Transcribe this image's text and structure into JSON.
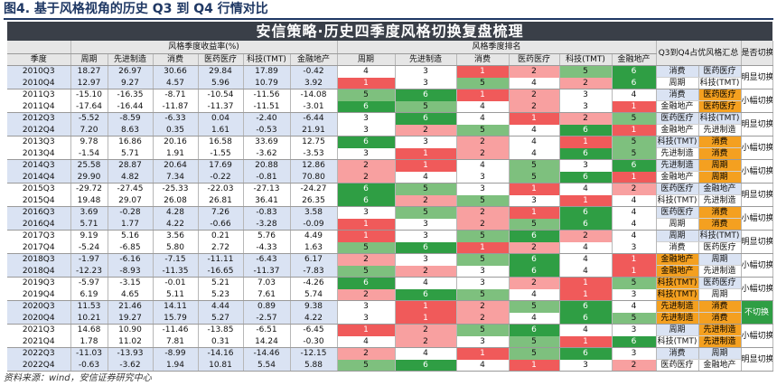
{
  "figure_title": "图4. 基于风格视角的历史 Q3 到 Q4 行情对比",
  "banner_title": "安信策略·历史四季度风格切换复盘梳理",
  "header": {
    "quarter_label": "季度",
    "returns_group": "风格季度收益率(%)",
    "rank_group": "风格季度排名",
    "summary_group": "Q3到Q4占优风格汇总",
    "switch_group": "是否切换",
    "styles": [
      "周期",
      "先进制造",
      "消费",
      "医药医疗",
      "科技(TMT)",
      "金融地产"
    ]
  },
  "rows": [
    {
      "q": "2010Q3",
      "ret": [
        "18.27",
        "26.97",
        "30.66",
        "29.84",
        "17.89",
        "-0.42"
      ],
      "rank": [
        "4",
        "3",
        "1",
        "2",
        "5",
        "6"
      ]
    },
    {
      "q": "2010Q4",
      "ret": [
        "12.97",
        "9.27",
        "4.57",
        "5.96",
        "10.79",
        "3.92"
      ],
      "rank": [
        "1",
        "3",
        "5",
        "4",
        "2",
        "6"
      ]
    },
    {
      "q": "2011Q3",
      "ret": [
        "-15.10",
        "-16.35",
        "-8.71",
        "-10.54",
        "-11.56",
        "-14.08"
      ],
      "rank": [
        "5",
        "6",
        "1",
        "2",
        "3",
        "4"
      ]
    },
    {
      "q": "2011Q4",
      "ret": [
        "-17.64",
        "-16.44",
        "-11.87",
        "-11.37",
        "-11.51",
        "-3.01"
      ],
      "rank": [
        "6",
        "5",
        "4",
        "2",
        "3",
        "1"
      ]
    },
    {
      "q": "2012Q3",
      "ret": [
        "-5.52",
        "-8.59",
        "-6.33",
        "0.04",
        "-2.40",
        "-6.44"
      ],
      "rank": [
        "3",
        "6",
        "4",
        "1",
        "2",
        "5"
      ]
    },
    {
      "q": "2012Q4",
      "ret": [
        "7.20",
        "8.63",
        "0.35",
        "1.61",
        "-0.53",
        "21.91"
      ],
      "rank": [
        "3",
        "2",
        "5",
        "4",
        "6",
        "1"
      ]
    },
    {
      "q": "2013Q3",
      "ret": [
        "9.78",
        "16.86",
        "20.16",
        "16.58",
        "33.69",
        "12.75"
      ],
      "rank": [
        "6",
        "3",
        "2",
        "4",
        "1",
        "5"
      ]
    },
    {
      "q": "2013Q4",
      "ret": [
        "-1.54",
        "5.71",
        "1.91",
        "-1.55",
        "-3.62",
        "-3.53"
      ],
      "rank": [
        "3",
        "1",
        "2",
        "4",
        "6",
        "5"
      ]
    },
    {
      "q": "2014Q3",
      "ret": [
        "25.58",
        "28.87",
        "20.64",
        "17.69",
        "20.88",
        "12.86"
      ],
      "rank": [
        "2",
        "1",
        "4",
        "5",
        "3",
        "6"
      ]
    },
    {
      "q": "2014Q4",
      "ret": [
        "29.90",
        "4.82",
        "7.34",
        "-0.22",
        "-0.81",
        "70.80"
      ],
      "rank": [
        "2",
        "4",
        "3",
        "5",
        "6",
        "1"
      ]
    },
    {
      "q": "2015Q3",
      "ret": [
        "-29.72",
        "-27.45",
        "-25.33",
        "-22.03",
        "-27.13",
        "-24.27"
      ],
      "rank": [
        "6",
        "5",
        "3",
        "1",
        "4",
        "2"
      ]
    },
    {
      "q": "2015Q4",
      "ret": [
        "19.48",
        "29.07",
        "26.08",
        "26.81",
        "36.41",
        "26.35"
      ],
      "rank": [
        "6",
        "2",
        "5",
        "3",
        "1",
        "4"
      ]
    },
    {
      "q": "2016Q3",
      "ret": [
        "3.69",
        "-0.28",
        "4.28",
        "7.26",
        "-0.83",
        "3.58"
      ],
      "rank": [
        "3",
        "5",
        "2",
        "1",
        "6",
        "4"
      ]
    },
    {
      "q": "2016Q4",
      "ret": [
        "5.71",
        "1.77",
        "4.22",
        "-0.66",
        "-3.28",
        "-0.09"
      ],
      "rank": [
        "1",
        "3",
        "2",
        "5",
        "6",
        "4"
      ]
    },
    {
      "q": "2017Q3",
      "ret": [
        "9.19",
        "5.16",
        "3.56",
        "0.21",
        "5.76",
        "4.49"
      ],
      "rank": [
        "1",
        "3",
        "5",
        "6",
        "2",
        "4"
      ]
    },
    {
      "q": "2017Q4",
      "ret": [
        "-5.24",
        "-6.85",
        "5.80",
        "2.72",
        "-4.33",
        "1.63"
      ],
      "rank": [
        "5",
        "6",
        "1",
        "2",
        "4",
        "3"
      ]
    },
    {
      "q": "2018Q3",
      "ret": [
        "-1.97",
        "-6.16",
        "-7.15",
        "-11.11",
        "-6.43",
        "6.17"
      ],
      "rank": [
        "2",
        "3",
        "5",
        "6",
        "4",
        "1"
      ]
    },
    {
      "q": "2018Q4",
      "ret": [
        "-12.23",
        "-8.93",
        "-11.35",
        "-16.65",
        "-11.37",
        "-7.83"
      ],
      "rank": [
        "5",
        "2",
        "3",
        "6",
        "4",
        "1"
      ]
    },
    {
      "q": "2019Q3",
      "ret": [
        "-5.97",
        "-3.15",
        "-0.01",
        "5.21",
        "7.03",
        "-4.26"
      ],
      "rank": [
        "6",
        "4",
        "3",
        "2",
        "1",
        "5"
      ]
    },
    {
      "q": "2019Q4",
      "ret": [
        "6.19",
        "4.65",
        "5.11",
        "5.23",
        "7.61",
        "5.74"
      ],
      "rank": [
        "2",
        "6",
        "5",
        "4",
        "1",
        "3"
      ]
    },
    {
      "q": "2020Q3",
      "ret": [
        "11.53",
        "21.46",
        "14.11",
        "4.44",
        "0.89",
        "9.38"
      ],
      "rank": [
        "3",
        "1",
        "2",
        "5",
        "6",
        "4"
      ]
    },
    {
      "q": "2020Q4",
      "ret": [
        "10.21",
        "19.27",
        "15.79",
        "5.27",
        "-2.57",
        "4.22"
      ],
      "rank": [
        "3",
        "1",
        "2",
        "4",
        "6",
        "5"
      ]
    },
    {
      "q": "2021Q3",
      "ret": [
        "14.68",
        "10.90",
        "-11.46",
        "-13.85",
        "-6.51",
        "-6.45"
      ],
      "rank": [
        "1",
        "2",
        "5",
        "6",
        "4",
        "3"
      ]
    },
    {
      "q": "2021Q4",
      "ret": [
        "1.78",
        "11.02",
        "7.81",
        "0.31",
        "14.24",
        "-0.30"
      ],
      "rank": [
        "4",
        "2",
        "3",
        "5",
        "1",
        "6"
      ]
    },
    {
      "q": "2022Q3",
      "ret": [
        "-11.03",
        "-13.93",
        "-8.99",
        "-14.16",
        "-14.46",
        "-12.15"
      ],
      "rank": [
        "2",
        "4",
        "1",
        "5",
        "6",
        "3"
      ]
    },
    {
      "q": "2022Q4",
      "ret": [
        "-0.63",
        "-3.62",
        "1.94",
        "10.81",
        "5.54",
        "5.88"
      ],
      "rank": [
        "5",
        "6",
        "4",
        "1",
        "3",
        "2"
      ]
    }
  ],
  "summary": [
    {
      "rows": [
        [
          "消费",
          "医药医疗"
        ],
        [
          "周期",
          "科技(TMT)"
        ]
      ],
      "on": [
        [
          false,
          false
        ],
        [
          false,
          false
        ]
      ],
      "switch": "明显切换",
      "green": false
    },
    {
      "rows": [
        [
          "消费",
          "医药医疗"
        ],
        [
          "金融地产",
          "医药医疗"
        ]
      ],
      "on": [
        [
          false,
          true
        ],
        [
          false,
          true
        ]
      ],
      "switch": "小幅切换",
      "green": false
    },
    {
      "rows": [
        [
          "医药医疗",
          "科技(TMT)"
        ],
        [
          "金融地产",
          "先进制造"
        ]
      ],
      "on": [
        [
          false,
          false
        ],
        [
          false,
          false
        ]
      ],
      "switch": "明显切换",
      "green": false
    },
    {
      "rows": [
        [
          "科技(TMT)",
          "消费"
        ],
        [
          "先进制造",
          "消费"
        ]
      ],
      "on": [
        [
          false,
          true
        ],
        [
          false,
          true
        ]
      ],
      "switch": "小幅切换",
      "green": false
    },
    {
      "rows": [
        [
          "先进制造",
          "周期"
        ],
        [
          "金融地产",
          "周期"
        ]
      ],
      "on": [
        [
          false,
          true
        ],
        [
          false,
          true
        ]
      ],
      "switch": "小幅切换",
      "green": false
    },
    {
      "rows": [
        [
          "医药医疗",
          "金融地产"
        ],
        [
          "科技(TMT)",
          "先进制造"
        ]
      ],
      "on": [
        [
          false,
          false
        ],
        [
          false,
          false
        ]
      ],
      "switch": "明显切换",
      "green": false
    },
    {
      "rows": [
        [
          "医药医疗",
          "消费"
        ],
        [
          "周期",
          "消费"
        ]
      ],
      "on": [
        [
          false,
          true
        ],
        [
          false,
          true
        ]
      ],
      "switch": "小幅切换",
      "green": false
    },
    {
      "rows": [
        [
          "周期",
          "科技(TMT)"
        ],
        [
          "消费",
          "医药医疗"
        ]
      ],
      "on": [
        [
          false,
          false
        ],
        [
          false,
          false
        ]
      ],
      "switch": "明显切换",
      "green": false
    },
    {
      "rows": [
        [
          "金融地产",
          "周期"
        ],
        [
          "金融地产",
          "先进制造"
        ]
      ],
      "on": [
        [
          true,
          false
        ],
        [
          true,
          false
        ]
      ],
      "switch": "小幅切换",
      "green": false
    },
    {
      "rows": [
        [
          "科技(TMT)",
          "医药医疗"
        ],
        [
          "科技(TMT)",
          "周期"
        ]
      ],
      "on": [
        [
          true,
          false
        ],
        [
          true,
          false
        ]
      ],
      "switch": "小幅切换",
      "green": false
    },
    {
      "rows": [
        [
          "先进制造",
          "消费"
        ],
        [
          "先进制造",
          "消费"
        ]
      ],
      "on": [
        [
          true,
          true
        ],
        [
          true,
          true
        ]
      ],
      "switch": "不切换",
      "green": true
    },
    {
      "rows": [
        [
          "周期",
          "先进制造"
        ],
        [
          "科技(TMT)",
          "先进制造"
        ]
      ],
      "on": [
        [
          false,
          true
        ],
        [
          false,
          true
        ]
      ],
      "switch": "小幅切换",
      "green": false
    },
    {
      "rows": [
        [
          "消费",
          "周期"
        ],
        [
          "医药医疗",
          "金融地产"
        ]
      ],
      "on": [
        [
          false,
          false
        ],
        [
          false,
          false
        ]
      ],
      "switch": "明显切换",
      "green": false
    }
  ],
  "source": "资料来源：wind，安信证券研究中心"
}
